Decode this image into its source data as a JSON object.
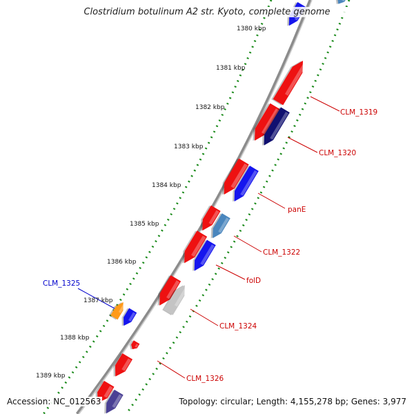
{
  "title": "Clostridium botulinum A2 str. Kyoto, complete genome",
  "footer": {
    "accession_label": "Accession: NC_012563",
    "topology_label": "Topology: circular; Length: 4,155,278 bp; Genes: 3,977"
  },
  "colors": {
    "backbone": "#8c8c8c",
    "ticks": "#1a8a1a",
    "tick_label": "#111111",
    "gene_label": "#cc0000",
    "highlight_label": "#0000cc",
    "red_gene": "#ee1111",
    "blue_gene": "#1515ee",
    "navy_gene": "#101070",
    "steel_gene": "#4a86bd",
    "grey_gene": "#c4c4c4",
    "orange_gene": "#ff9a1a",
    "purple_gene": "#4a4094"
  },
  "ruler": [
    "1380 kbp",
    "1381 kbp",
    "1382 kbp",
    "1383 kbp",
    "1384 kbp",
    "1385 kbp",
    "1386 kbp",
    "1387 kbp",
    "1388 kbp",
    "1389 kbp"
  ],
  "gene_labels": [
    {
      "text": "CLM_1319",
      "color": "red"
    },
    {
      "text": "CLM_1320",
      "color": "red"
    },
    {
      "text": "panE",
      "color": "red"
    },
    {
      "text": "CLM_1322",
      "color": "red"
    },
    {
      "text": "folD",
      "color": "red"
    },
    {
      "text": "CLM_1324",
      "color": "red"
    },
    {
      "text": "CLM_1326",
      "color": "red"
    },
    {
      "text": "CLM_1325",
      "color": "blue"
    }
  ]
}
